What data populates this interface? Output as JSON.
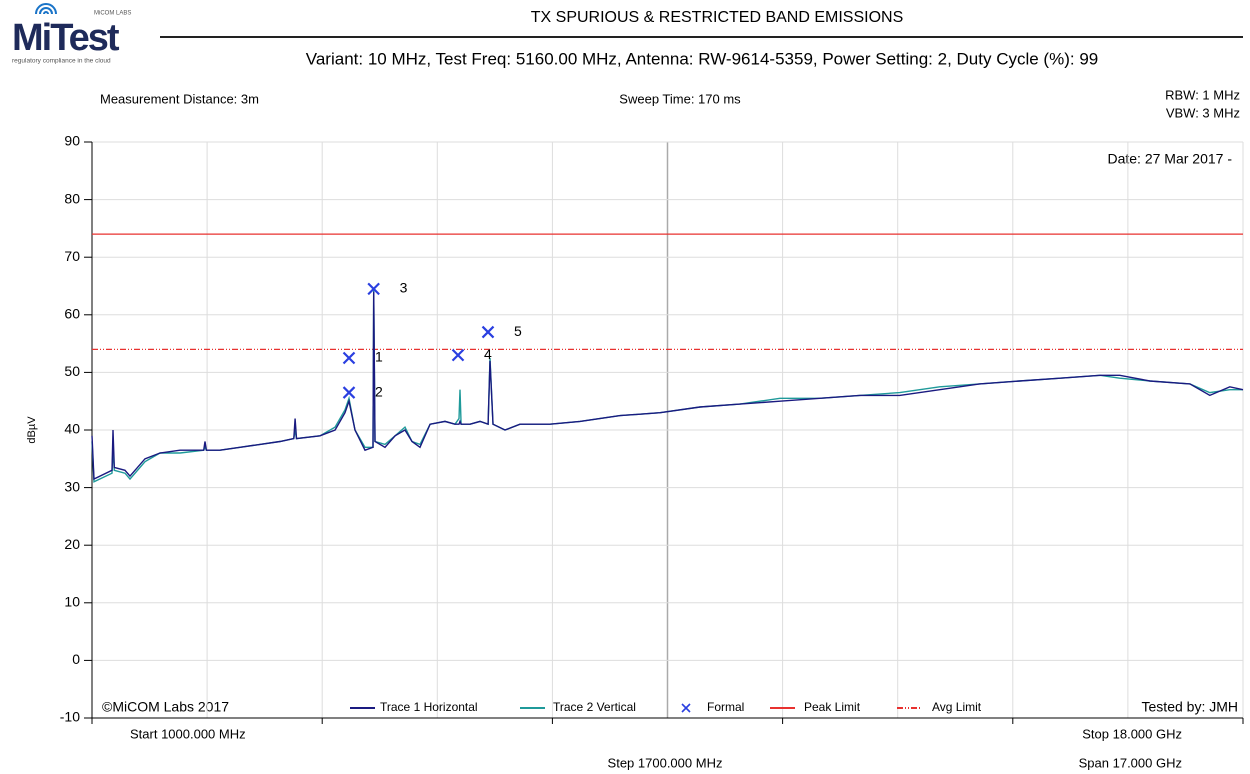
{
  "logo": {
    "name": "MiTest",
    "maker": "MiCOM LABS",
    "tagline": "regulatory compliance in the cloud"
  },
  "chart_data": {
    "type": "line",
    "title": "TX SPURIOUS & RESTRICTED BAND EMISSIONS",
    "subtitle": "Variant: 10 MHz, Test Freq: 5160.00 MHz, Antenna: RW-9614-5359, Power Setting: 2, Duty Cycle (%): 99",
    "info": {
      "distance": "Measurement Distance: 3m",
      "sweep": "Sweep Time: 170 ms",
      "rbw": "RBW: 1 MHz",
      "vbw": "VBW: 3 MHz",
      "date": "Date: 27 Mar 2017 -",
      "copyright": "©MiCOM Labs 2017",
      "tested": "Tested by: JMH",
      "start": "Start 1000.000 MHz",
      "stop": "Stop 18.000 GHz",
      "step": "Step 1700.000 MHz",
      "span": "Span 17.000 GHz"
    },
    "y_label": "dBµV",
    "xlim": [
      1000,
      18000
    ],
    "xticks": [
      1000,
      2700,
      4400,
      6100,
      7800,
      9500,
      11200,
      12900,
      14600,
      16300,
      18000
    ],
    "ylim": [
      -10,
      90
    ],
    "yticks": [
      -10,
      0,
      10,
      20,
      30,
      40,
      50,
      60,
      70,
      80,
      90
    ],
    "grid": true,
    "x": [
      1000,
      1030,
      1295,
      1310,
      1330,
      1487,
      1561,
      1783,
      2005,
      2300,
      2650,
      2669,
      2690,
      2891,
      3186,
      3481,
      3777,
      3980,
      4000,
      4020,
      4368,
      4590,
      4737,
      4796,
      4885,
      5032,
      5150,
      5160,
      5180,
      5328,
      5476,
      5623,
      5726,
      5845,
      5993,
      6214,
      6362,
      6420,
      6436,
      6452,
      6584,
      6731,
      6850,
      6879,
      6923,
      7100,
      7322,
      7765,
      8208,
      8800,
      9390,
      9980,
      10570,
      11160,
      11750,
      12340,
      12930,
      13520,
      14110,
      14700,
      15300,
      15890,
      16180,
      16625,
      17215,
      17510,
      17805,
      18000
    ],
    "series": [
      {
        "name": "Trace 1 Horizontal",
        "color": "#1a1a80",
        "values": [
          39,
          31.5,
          33,
          40,
          33.5,
          33,
          32,
          35,
          36,
          36.5,
          36.5,
          38,
          36.5,
          36.5,
          37,
          37.5,
          38,
          38.5,
          42,
          38.5,
          39,
          40,
          43,
          45,
          40,
          36.5,
          37,
          64,
          38,
          37,
          39,
          40,
          38,
          37,
          41,
          41.5,
          41,
          41,
          41.5,
          41,
          41,
          41.5,
          41,
          52,
          41,
          40,
          41,
          41,
          41.5,
          42.5,
          43,
          44,
          44.5,
          45,
          45.5,
          46,
          46,
          47,
          48,
          48.5,
          49,
          49.5,
          49.5,
          48.5,
          48,
          46,
          47.5,
          47
        ]
      },
      {
        "name": "Trace 2 Vertical",
        "color": "#1f9a9a",
        "values": [
          38,
          31,
          32.5,
          37,
          33,
          32.5,
          31.5,
          34.5,
          36,
          36,
          36.5,
          37,
          36.5,
          36.5,
          37,
          37.5,
          38,
          38.5,
          40,
          38.5,
          39,
          40.5,
          43.5,
          45.5,
          40,
          37,
          37,
          64.5,
          38,
          37.5,
          39,
          40.5,
          38,
          37.5,
          41,
          41.5,
          41,
          42,
          47,
          41,
          41,
          41.5,
          41,
          52.5,
          41,
          40,
          41,
          41,
          41.5,
          42.5,
          43,
          44,
          44.5,
          45.5,
          45.5,
          46,
          46.5,
          47.5,
          48,
          48.5,
          49,
          49.5,
          49,
          48.5,
          48,
          46.5,
          47,
          47
        ]
      }
    ],
    "markers": {
      "name": "Formal",
      "color": "#2a3fe0",
      "x": [
        4796,
        4796,
        5160,
        6406,
        6849
      ],
      "values": [
        52.5,
        46.5,
        64.5,
        53,
        57
      ],
      "labels": [
        "1",
        "2",
        "3",
        "4",
        "5"
      ]
    },
    "limits": [
      {
        "name": "Peak Limit",
        "color": "#e8312f",
        "value": 74,
        "style": "solid"
      },
      {
        "name": "Avg Limit",
        "color": "#e8312f",
        "value": 54,
        "style": "dashdot"
      }
    ]
  }
}
